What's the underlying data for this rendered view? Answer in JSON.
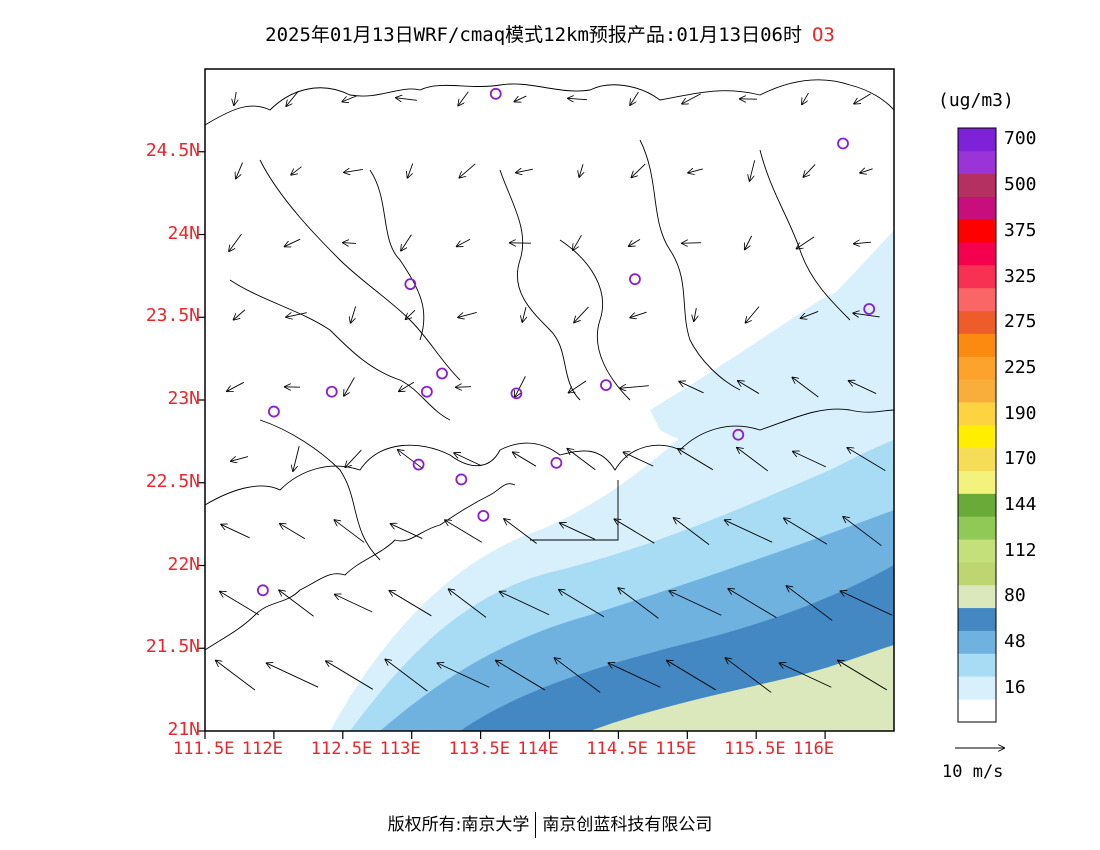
{
  "title": {
    "main": "2025年01月13日WRF/cmaq模式12km预报产品:01月13日06时",
    "species": "O3"
  },
  "axes": {
    "lat_labels": [
      "24.5N",
      "24N",
      "23.5N",
      "23N",
      "22.5N",
      "22N",
      "21.5N",
      "21N"
    ],
    "lon_labels": [
      "111.5E",
      "112E",
      "112.5E",
      "113E",
      "113.5E",
      "114E",
      "114.5E",
      "115E",
      "115.5E",
      "116E"
    ],
    "lat_range": [
      21,
      25
    ],
    "lon_range": [
      111.5,
      116.5
    ]
  },
  "legend": {
    "unit": "(ug/m3)",
    "colors": [
      "#ffffff",
      "#d8f0fc",
      "#a8dcf5",
      "#6fb2e0",
      "#4488c3",
      "#dbe8bb",
      "#bdd66f",
      "#c3e07a",
      "#91c957",
      "#6aaa39",
      "#f2f27c",
      "#f5dd58",
      "#ffee00",
      "#fdd43f",
      "#f9ad3b",
      "#fda32c",
      "#fa8a10",
      "#ee5c2c",
      "#fa6565",
      "#f83152",
      "#f5004f",
      "#ff0000",
      "#c80d7c",
      "#b33060",
      "#9b34d6",
      "#7d22d8"
    ],
    "labels": [
      "16",
      "48",
      "80",
      "112",
      "144",
      "170",
      "190",
      "225",
      "275",
      "325",
      "375",
      "500",
      "700"
    ]
  },
  "wind_reference": {
    "label": "10 m/s"
  },
  "stations": [
    {
      "lon": 113.61,
      "lat": 24.85
    },
    {
      "lon": 116.13,
      "lat": 24.55
    },
    {
      "lon": 112.99,
      "lat": 23.7
    },
    {
      "lon": 114.62,
      "lat": 23.73
    },
    {
      "lon": 116.32,
      "lat": 23.55
    },
    {
      "lon": 112.42,
      "lat": 23.05
    },
    {
      "lon": 113.11,
      "lat": 23.05
    },
    {
      "lon": 113.22,
      "lat": 23.16
    },
    {
      "lon": 113.76,
      "lat": 23.04
    },
    {
      "lon": 114.41,
      "lat": 23.09
    },
    {
      "lon": 112.0,
      "lat": 22.93
    },
    {
      "lon": 115.37,
      "lat": 22.79
    },
    {
      "lon": 113.05,
      "lat": 22.61
    },
    {
      "lon": 113.36,
      "lat": 22.52
    },
    {
      "lon": 114.05,
      "lat": 22.62
    },
    {
      "lon": 113.52,
      "lat": 22.3
    },
    {
      "lon": 111.92,
      "lat": 21.85
    }
  ],
  "footer": {
    "left": "版权所有:南京大学",
    "right": "南京创蓝科技有限公司"
  }
}
